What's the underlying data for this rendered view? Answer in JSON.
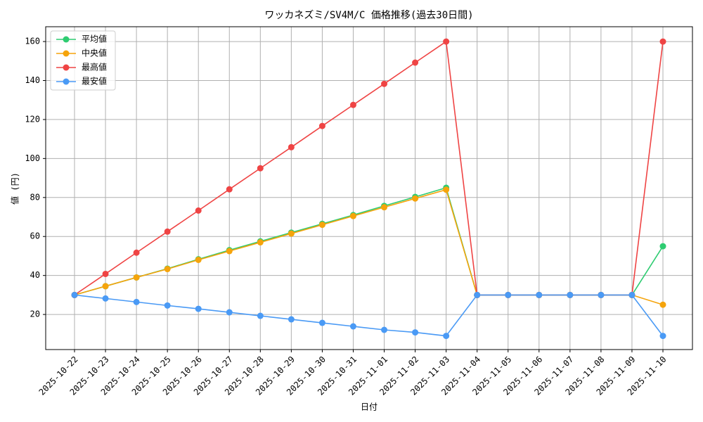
{
  "chart_data": {
    "type": "line",
    "title": "ワッカネズミ/SV4M/C 価格推移(過去30日間)",
    "x_label": "日付",
    "y_label": "値 (円)",
    "categories": [
      "2025-10-22",
      "2025-10-23",
      "2025-10-24",
      "2025-10-25",
      "2025-10-26",
      "2025-10-27",
      "2025-10-28",
      "2025-10-29",
      "2025-10-30",
      "2025-10-31",
      "2025-11-01",
      "2025-11-02",
      "2025-11-03",
      "2025-11-04",
      "2025-11-05",
      "2025-11-06",
      "2025-11-07",
      "2025-11-08",
      "2025-11-09",
      "2025-11-10"
    ],
    "series": [
      {
        "name": "平均値",
        "color": "#2ecc71",
        "values": [
          30,
          34.5,
          39,
          43.5,
          48.3,
          53,
          57.5,
          62,
          66.5,
          71,
          75.7,
          80.3,
          85,
          30,
          30,
          30,
          30,
          30,
          30,
          55
        ]
      },
      {
        "name": "中央値",
        "color": "#f5a40c",
        "values": [
          30,
          34.5,
          39,
          43.3,
          48,
          52.5,
          57,
          61.5,
          66,
          70.5,
          75,
          79.5,
          84,
          30,
          30,
          30,
          30,
          30,
          30,
          25
        ]
      },
      {
        "name": "最高値",
        "color": "#ef4444",
        "values": [
          30,
          40.8,
          51.7,
          62.5,
          73.3,
          84.2,
          95,
          105.8,
          116.7,
          127.5,
          138.3,
          149.2,
          160,
          30,
          30,
          30,
          30,
          30,
          30,
          160
        ]
      },
      {
        "name": "最安値",
        "color": "#4a9af5",
        "values": [
          30,
          28.2,
          26.4,
          24.6,
          22.9,
          21.1,
          19.3,
          17.5,
          15.7,
          13.9,
          12.1,
          10.8,
          9,
          30,
          30,
          30,
          30,
          30,
          30,
          9
        ]
      }
    ],
    "ylim": [
      2,
      167.6
    ],
    "yticks": [
      20,
      40,
      60,
      80,
      100,
      120,
      140,
      160
    ],
    "grid": true,
    "legend": "upper-left"
  }
}
